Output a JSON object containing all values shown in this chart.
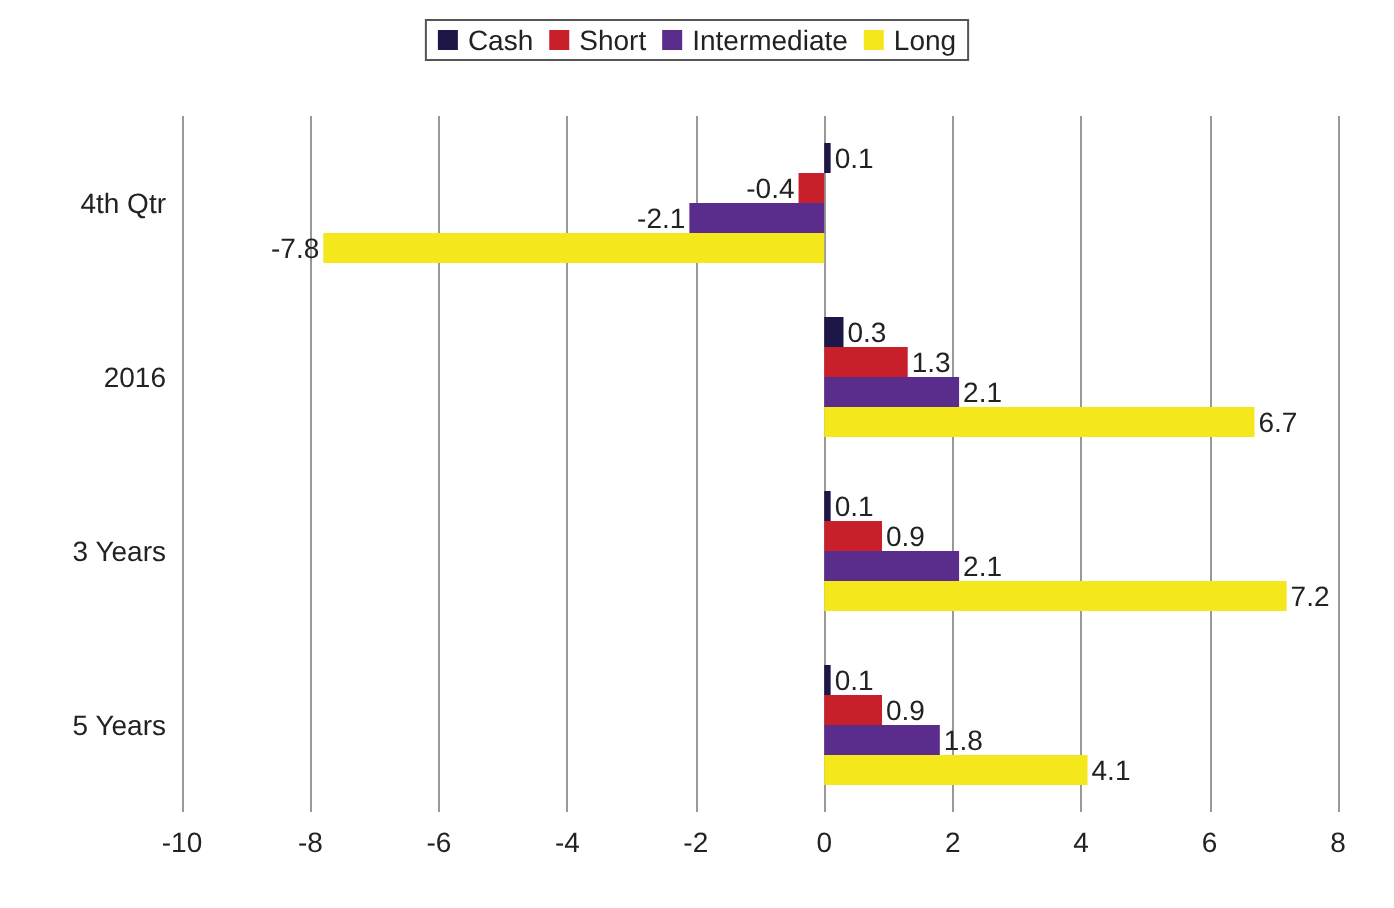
{
  "chart_data": {
    "type": "bar",
    "orientation": "horizontal",
    "categories": [
      "4th Qtr",
      "2016",
      "3 Years",
      "5 Years"
    ],
    "series": [
      {
        "name": "Cash",
        "color": "#1c1747",
        "values": [
          0.1,
          0.3,
          0.1,
          0.1
        ]
      },
      {
        "name": "Short",
        "color": "#c8202b",
        "values": [
          -0.4,
          1.3,
          0.9,
          0.9
        ]
      },
      {
        "name": "Intermediate",
        "color": "#5a2d8c",
        "values": [
          -2.1,
          2.1,
          2.1,
          1.8
        ]
      },
      {
        "name": "Long",
        "color": "#f4e81c",
        "values": [
          -7.8,
          6.7,
          7.2,
          4.1
        ]
      }
    ],
    "xlim": [
      -10,
      8
    ],
    "xticks": [
      -10,
      -8,
      -6,
      -4,
      -2,
      0,
      2,
      4,
      6,
      8
    ],
    "grid": "x",
    "legend": "top",
    "data_labels": true
  }
}
